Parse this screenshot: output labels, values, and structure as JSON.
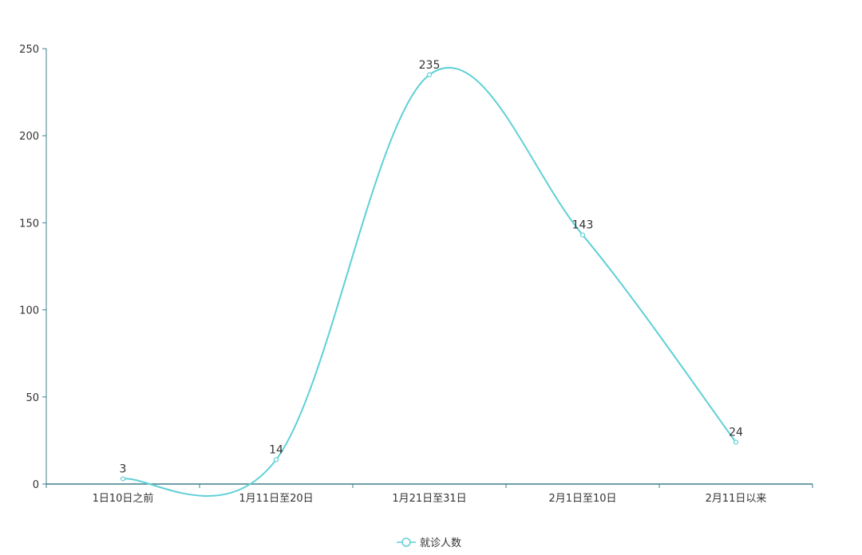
{
  "chart_data": {
    "type": "line",
    "smooth": true,
    "categories": [
      "1日10日之前",
      "1月11日至20日",
      "1月21日至31日",
      "2月1日至10日",
      "2月11日以来"
    ],
    "series": [
      {
        "name": "就诊人数",
        "values": [
          3,
          14,
          235,
          143,
          24
        ],
        "color": "#5fd0d6"
      }
    ],
    "ylim": [
      0,
      250
    ],
    "yticks": [
      0,
      50,
      100,
      150,
      200,
      250
    ],
    "grid": false,
    "legend": "bottom-center",
    "axis_color": "#3f7f8c",
    "text_color": "#333333"
  }
}
